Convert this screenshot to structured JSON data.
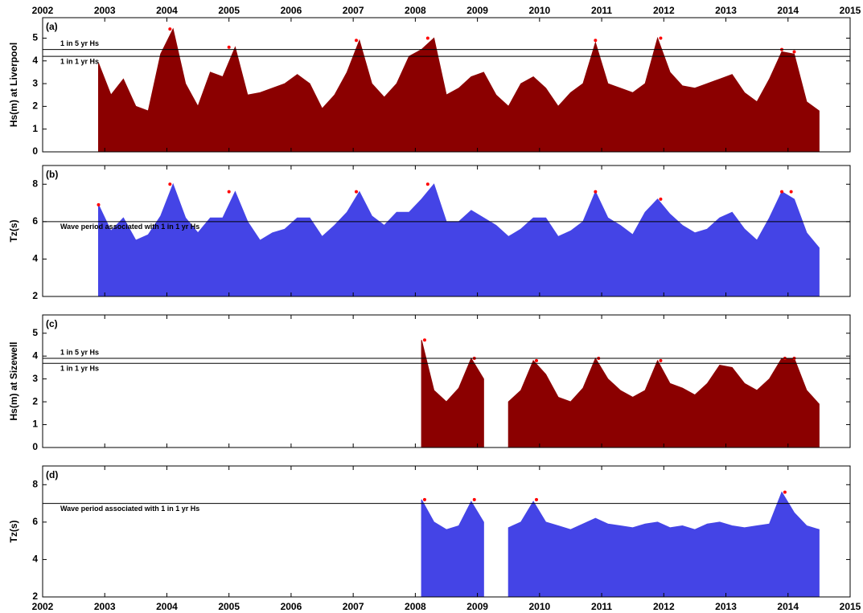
{
  "chart_data": [
    {
      "type": "area",
      "panel_label": "(a)",
      "ylabel": "Hs(m) at Liverpool",
      "color": "#8b0000",
      "xtick_labels": "top",
      "xlim": [
        2002,
        2015
      ],
      "xticks": [
        2002,
        2003,
        2004,
        2005,
        2006,
        2007,
        2008,
        2009,
        2010,
        2011,
        2012,
        2013,
        2014,
        2015
      ],
      "ylim": [
        0,
        5.9
      ],
      "yticks": [
        0,
        1,
        2,
        3,
        4,
        5
      ],
      "x": [
        2002.9,
        2003.1,
        2003.3,
        2003.5,
        2003.7,
        2003.9,
        2004.1,
        2004.3,
        2004.5,
        2004.7,
        2004.9,
        2005.1,
        2005.3,
        2005.5,
        2005.7,
        2005.9,
        2006.1,
        2006.3,
        2006.5,
        2006.7,
        2006.9,
        2007.1,
        2007.3,
        2007.5,
        2007.7,
        2007.9,
        2008.1,
        2008.3,
        2008.5,
        2008.7,
        2008.9,
        2009.1,
        2009.3,
        2009.5,
        2009.7,
        2009.9,
        2010.1,
        2010.3,
        2010.5,
        2010.7,
        2010.9,
        2011.1,
        2011.3,
        2011.5,
        2011.7,
        2011.9,
        2012.1,
        2012.3,
        2012.5,
        2012.7,
        2012.9,
        2013.1,
        2013.3,
        2013.5,
        2013.7,
        2013.9,
        2014.1,
        2014.3,
        2014.5
      ],
      "values": [
        3.9,
        2.5,
        3.2,
        2.0,
        1.8,
        4.3,
        5.4,
        3.0,
        2.0,
        3.5,
        3.3,
        4.6,
        2.5,
        2.6,
        2.8,
        3.0,
        3.4,
        3.0,
        1.9,
        2.5,
        3.5,
        4.9,
        3.0,
        2.4,
        3.0,
        4.2,
        4.5,
        5.0,
        2.5,
        2.8,
        3.3,
        3.5,
        2.5,
        2.0,
        3.0,
        3.3,
        2.8,
        2.0,
        2.6,
        3.0,
        4.8,
        3.0,
        2.8,
        2.6,
        3.0,
        5.0,
        3.5,
        2.9,
        2.8,
        3.0,
        3.2,
        3.4,
        2.6,
        2.2,
        3.2,
        4.4,
        4.3,
        2.2,
        1.8
      ],
      "reference_lines": [
        {
          "value": 4.5,
          "label": "1 in 5 yr Hs"
        },
        {
          "value": 4.2,
          "label": "1 in 1 yr Hs"
        }
      ],
      "exceedances": {
        "color": "#ff0000",
        "x": [
          2004.05,
          2005.0,
          2007.05,
          2008.2,
          2010.9,
          2011.95,
          2013.9,
          2014.1
        ],
        "values": [
          5.4,
          4.6,
          4.9,
          5.0,
          4.9,
          5.0,
          4.5,
          4.4
        ]
      }
    },
    {
      "type": "area",
      "panel_label": "(b)",
      "ylabel": "Tz(s)",
      "color": "#4444e6",
      "xlim": [
        2002,
        2015
      ],
      "xticks": [
        2002,
        2003,
        2004,
        2005,
        2006,
        2007,
        2008,
        2009,
        2010,
        2011,
        2012,
        2013,
        2014,
        2015
      ],
      "ylim": [
        2,
        9
      ],
      "yticks": [
        2,
        4,
        6,
        8
      ],
      "x": [
        2002.9,
        2003.1,
        2003.3,
        2003.5,
        2003.7,
        2003.9,
        2004.1,
        2004.3,
        2004.5,
        2004.7,
        2004.9,
        2005.1,
        2005.3,
        2005.5,
        2005.7,
        2005.9,
        2006.1,
        2006.3,
        2006.5,
        2006.7,
        2006.9,
        2007.1,
        2007.3,
        2007.5,
        2007.7,
        2007.9,
        2008.1,
        2008.3,
        2008.5,
        2008.7,
        2008.9,
        2009.1,
        2009.3,
        2009.5,
        2009.7,
        2009.9,
        2010.1,
        2010.3,
        2010.5,
        2010.7,
        2010.9,
        2011.1,
        2011.3,
        2011.5,
        2011.7,
        2011.9,
        2012.1,
        2012.3,
        2012.5,
        2012.7,
        2012.9,
        2013.1,
        2013.3,
        2013.5,
        2013.7,
        2013.9,
        2014.1,
        2014.3,
        2014.5
      ],
      "values": [
        6.9,
        5.5,
        6.2,
        5.0,
        5.3,
        6.3,
        8.0,
        6.2,
        5.4,
        6.2,
        6.2,
        7.6,
        6.0,
        5.0,
        5.4,
        5.6,
        6.2,
        6.2,
        5.2,
        5.8,
        6.5,
        7.6,
        6.3,
        5.8,
        6.5,
        6.5,
        7.2,
        8.0,
        6.0,
        6.0,
        6.6,
        6.2,
        5.8,
        5.2,
        5.6,
        6.2,
        6.2,
        5.2,
        5.5,
        6.0,
        7.6,
        6.2,
        5.8,
        5.3,
        6.5,
        7.2,
        6.4,
        5.8,
        5.4,
        5.6,
        6.2,
        6.5,
        5.6,
        5.0,
        6.2,
        7.6,
        7.2,
        5.4,
        4.6
      ],
      "reference_lines": [
        {
          "value": 6,
          "label": "Wave period associated with 1 in 1 yr Hs"
        }
      ],
      "exceedances": {
        "color": "#ff0000",
        "x": [
          2002.9,
          2004.05,
          2005.0,
          2007.05,
          2008.2,
          2010.9,
          2011.95,
          2013.9,
          2014.05
        ],
        "values": [
          6.9,
          8.0,
          7.6,
          7.6,
          8.0,
          7.6,
          7.2,
          7.6,
          7.6
        ]
      }
    },
    {
      "type": "area",
      "panel_label": "(c)",
      "ylabel": "Hs(m) at Sizewell",
      "color": "#8b0000",
      "xlim": [
        2002,
        2015
      ],
      "xticks": [
        2002,
        2003,
        2004,
        2005,
        2006,
        2007,
        2008,
        2009,
        2010,
        2011,
        2012,
        2013,
        2014,
        2015
      ],
      "ylim": [
        0,
        5.8
      ],
      "yticks": [
        0,
        1,
        2,
        3,
        4,
        5
      ],
      "x": [
        2008.1,
        2008.3,
        2008.5,
        2008.7,
        2008.9,
        2009.1,
        2009.3,
        2009.5,
        2009.7,
        2009.9,
        2010.1,
        2010.3,
        2010.5,
        2010.7,
        2010.9,
        2011.1,
        2011.3,
        2011.5,
        2011.7,
        2011.9,
        2012.1,
        2012.3,
        2012.5,
        2012.7,
        2012.9,
        2013.1,
        2013.3,
        2013.5,
        2013.7,
        2013.9,
        2014.1,
        2014.3,
        2014.5
      ],
      "values": [
        4.7,
        2.5,
        2.0,
        2.6,
        3.9,
        3.0,
        null,
        2.0,
        2.5,
        3.8,
        3.2,
        2.2,
        2.0,
        2.6,
        3.9,
        3.0,
        2.5,
        2.2,
        2.5,
        3.8,
        2.8,
        2.6,
        2.3,
        2.8,
        3.6,
        3.5,
        2.8,
        2.5,
        3.0,
        3.9,
        3.9,
        2.5,
        1.9
      ],
      "reference_lines": [
        {
          "value": 3.9,
          "label": "1 in 5 yr Hs"
        },
        {
          "value": 3.68,
          "label": "1 in 1 yr Hs"
        }
      ],
      "exceedances": {
        "color": "#ff0000",
        "x": [
          2008.15,
          2008.95,
          2009.95,
          2010.95,
          2011.95,
          2013.95,
          2014.1
        ],
        "values": [
          4.7,
          3.9,
          3.8,
          3.9,
          3.8,
          3.9,
          3.9
        ]
      }
    },
    {
      "type": "area",
      "panel_label": "(d)",
      "ylabel": "Tz(s)",
      "color": "#4444e6",
      "xtick_labels": "bottom",
      "xlim": [
        2002,
        2015
      ],
      "xticks": [
        2002,
        2003,
        2004,
        2005,
        2006,
        2007,
        2008,
        2009,
        2010,
        2011,
        2012,
        2013,
        2014,
        2015
      ],
      "ylim": [
        2,
        9
      ],
      "yticks": [
        2,
        4,
        6,
        8
      ],
      "x": [
        2008.1,
        2008.3,
        2008.5,
        2008.7,
        2008.9,
        2009.1,
        2009.3,
        2009.5,
        2009.7,
        2009.9,
        2010.1,
        2010.3,
        2010.5,
        2010.7,
        2010.9,
        2011.1,
        2011.3,
        2011.5,
        2011.7,
        2011.9,
        2012.1,
        2012.3,
        2012.5,
        2012.7,
        2012.9,
        2013.1,
        2013.3,
        2013.5,
        2013.7,
        2013.9,
        2014.1,
        2014.3,
        2014.5
      ],
      "values": [
        7.2,
        6.0,
        5.6,
        5.8,
        7.1,
        6.0,
        null,
        5.7,
        6.0,
        7.1,
        6.0,
        5.8,
        5.6,
        5.9,
        6.2,
        5.9,
        5.8,
        5.7,
        5.9,
        6.0,
        5.7,
        5.8,
        5.6,
        5.9,
        6.0,
        5.8,
        5.7,
        5.8,
        5.9,
        7.6,
        6.5,
        5.8,
        5.6
      ],
      "reference_lines": [
        {
          "value": 7,
          "label": "Wave period associated with 1 in 1 yr Hs"
        }
      ],
      "exceedances": {
        "color": "#ff0000",
        "x": [
          2008.15,
          2008.95,
          2009.95,
          2013.95
        ],
        "values": [
          7.2,
          7.2,
          7.2,
          7.6
        ]
      }
    }
  ]
}
